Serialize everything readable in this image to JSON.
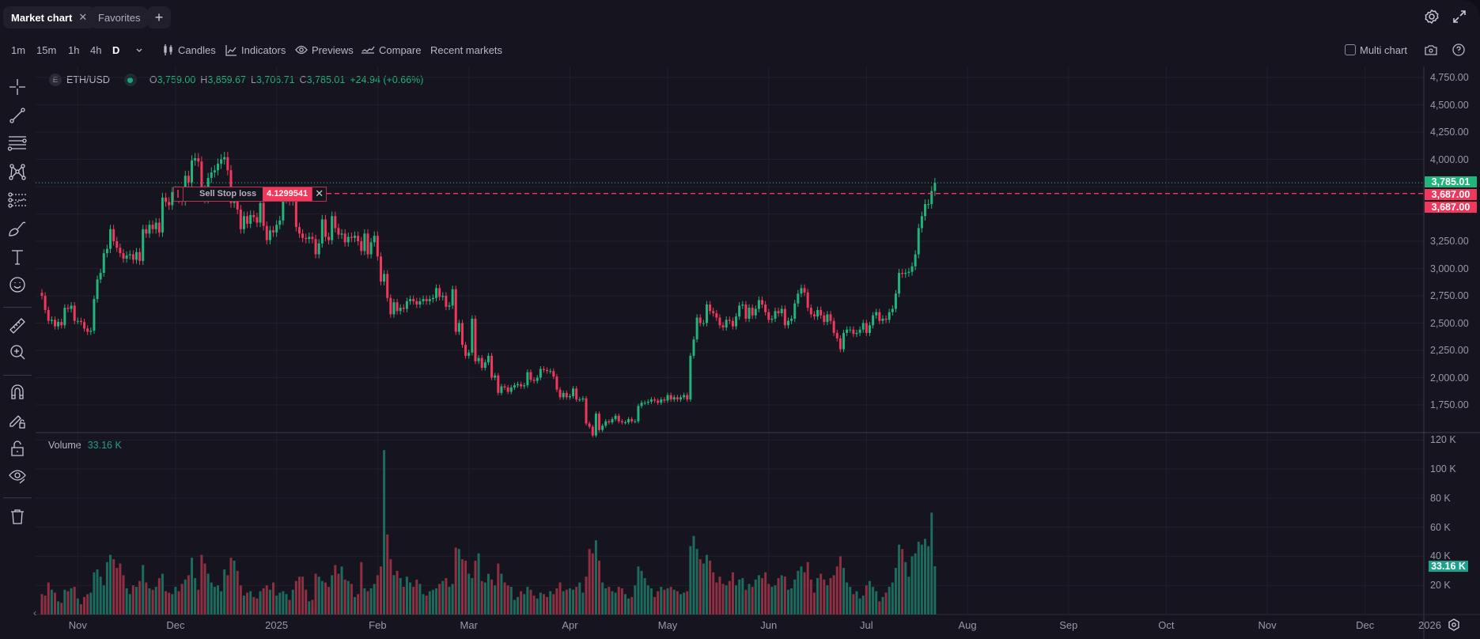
{
  "tabs": [
    {
      "label": "Market chart",
      "active": true
    },
    {
      "label": "Favorites",
      "active": false
    }
  ],
  "add_tab_label": "+",
  "timeframes": [
    "1m",
    "15m",
    "1h",
    "4h",
    "D"
  ],
  "active_timeframe": "D",
  "toolbar": {
    "candles": "Candles",
    "indicators": "Indicators",
    "previews": "Previews",
    "compare": "Compare",
    "recent": "Recent markets",
    "multi_chart": "Multi chart"
  },
  "legend": {
    "exchange_badge": "E",
    "symbol": "ETH/USD",
    "open_label": "O",
    "open": "3,759.00",
    "high_label": "H",
    "high": "3,859.67",
    "low_label": "L",
    "low": "3,706.71",
    "close_label": "C",
    "close": "3,785.01",
    "change": "+24.94 (+0.66%)"
  },
  "volume_legend": {
    "label": "Volume",
    "value": "33.16 K"
  },
  "order": {
    "label": "Sell Stop loss",
    "value": "4.1299541",
    "price": 3687
  },
  "price_labels": {
    "last": "3,785.01",
    "order1": "3,687.00",
    "order2": "3,687.00",
    "volume": "33.16 K"
  },
  "colors": {
    "up": "#22b47a",
    "down": "#f0385d",
    "vol_up": "#1d6b5c",
    "vol_down": "#8f2f42",
    "bg": "#16141f",
    "last_price": "#22b47a",
    "order": "#f0385d",
    "volume_badge": "#1ea08a"
  },
  "icons": {
    "left_toolbar": [
      "crosshair-icon",
      "trend-line-icon",
      "horizontal-lines-icon",
      "pattern-icon",
      "fib-icon",
      "brush-icon",
      "text-icon",
      "emoji-icon",
      "ruler-icon",
      "zoom-in-icon",
      "magnet-icon",
      "lock-drawings-icon",
      "lock-icon",
      "eye-icon",
      "trash-icon"
    ]
  },
  "chart_data": {
    "type": "candlestick",
    "symbol": "ETH/USD",
    "interval": "D",
    "start_date": "2024-10-21",
    "end_date": "2025-07-22",
    "price_axis": {
      "ticks": [
        "4,750.00",
        "4,500.00",
        "4,250.00",
        "4,000.00",
        "3,250.00",
        "3,000.00",
        "2,750.00",
        "2,500.00",
        "2,250.00",
        "2,000.00",
        "1,750.00"
      ],
      "ylim": [
        1500,
        4850
      ]
    },
    "volume_axis": {
      "ticks": [
        "120 K",
        "100 K",
        "80 K",
        "60 K",
        "40 K",
        "20 K"
      ],
      "ylim": [
        0,
        125
      ]
    },
    "time_axis": {
      "ticks": [
        {
          "label": "Nov",
          "date": "2024-11-01"
        },
        {
          "label": "Dec",
          "date": "2024-12-01"
        },
        {
          "label": "2025",
          "date": "2025-01-01"
        },
        {
          "label": "Feb",
          "date": "2025-02-01"
        },
        {
          "label": "Mar",
          "date": "2025-03-01"
        },
        {
          "label": "Apr",
          "date": "2025-04-01"
        },
        {
          "label": "May",
          "date": "2025-05-01"
        },
        {
          "label": "Jun",
          "date": "2025-06-01"
        },
        {
          "label": "Jul",
          "date": "2025-07-01"
        },
        {
          "label": "Aug",
          "date": "2025-08-01"
        },
        {
          "label": "Sep",
          "date": "2025-09-01"
        },
        {
          "label": "Oct",
          "date": "2025-10-01"
        },
        {
          "label": "Nov",
          "date": "2025-11-01"
        },
        {
          "label": "Dec",
          "date": "2025-12-01"
        },
        {
          "label": "2026",
          "date": "2026-01-01"
        }
      ]
    },
    "last_price": 3785.01,
    "close": [
      2750,
      2620,
      2520,
      2530,
      2470,
      2510,
      2480,
      2640,
      2630,
      2660,
      2520,
      2520,
      2510,
      2450,
      2420,
      2430,
      2720,
      2900,
      2960,
      3140,
      3180,
      3360,
      3250,
      3190,
      3140,
      3090,
      3120,
      3130,
      3080,
      3150,
      3070,
      3360,
      3320,
      3400,
      3360,
      3420,
      3330,
      3650,
      3610,
      3580,
      3700,
      3710,
      3640,
      3620,
      3850,
      3790,
      3990,
      4010,
      3980,
      3720,
      3640,
      3830,
      3880,
      3900,
      3960,
      4000,
      4020,
      3900,
      3600,
      3620,
      3540,
      3360,
      3480,
      3410,
      3490,
      3470,
      3420,
      3600,
      3390,
      3260,
      3350,
      3330,
      3400,
      3440,
      3640,
      3640,
      3620,
      3690,
      3380,
      3320,
      3280,
      3270,
      3290,
      3270,
      3130,
      3230,
      3450,
      3290,
      3260,
      3480,
      3370,
      3310,
      3320,
      3240,
      3290,
      3280,
      3300,
      3250,
      3160,
      3320,
      3130,
      3240,
      3300,
      3110,
      2880,
      2950,
      2730,
      2580,
      2690,
      2610,
      2640,
      2630,
      2700,
      2720,
      2700,
      2670,
      2700,
      2720,
      2700,
      2720,
      2730,
      2820,
      2740,
      2750,
      2650,
      2660,
      2810,
      2420,
      2500,
      2300,
      2200,
      2230,
      2540,
      2150,
      2180,
      2090,
      2140,
      2200,
      2000,
      2020,
      1860,
      1920,
      1910,
      1870,
      1910,
      1930,
      1940,
      1920,
      1930,
      2050,
      1980,
      1970,
      2000,
      2080,
      2070,
      2060,
      2060,
      2010,
      1890,
      1820,
      1860,
      1820,
      1830,
      1900,
      1800,
      1800,
      1810,
      1580,
      1550,
      1470,
      1670,
      1520,
      1560,
      1600,
      1590,
      1620,
      1650,
      1600,
      1590,
      1590,
      1620,
      1600,
      1600,
      1740,
      1770,
      1770,
      1780,
      1800,
      1790,
      1770,
      1800,
      1790,
      1840,
      1800,
      1820,
      1800,
      1820,
      1840,
      1800,
      2200,
      2350,
      2550,
      2500,
      2500,
      2670,
      2610,
      2590,
      2550,
      2480,
      2460,
      2530,
      2520,
      2470,
      2560,
      2660,
      2670,
      2540,
      2640,
      2570,
      2630,
      2710,
      2670,
      2600,
      2530,
      2540,
      2610,
      2590,
      2630,
      2480,
      2520,
      2540,
      2680,
      2770,
      2820,
      2780,
      2640,
      2580,
      2560,
      2620,
      2570,
      2510,
      2580,
      2520,
      2410,
      2360,
      2260,
      2410,
      2440,
      2440,
      2400,
      2410,
      2440,
      2500,
      2410,
      2480,
      2570,
      2600,
      2520,
      2540,
      2530,
      2600,
      2630,
      2770,
      2960,
      2950,
      2960,
      2970,
      3020,
      3130,
      3370,
      3480,
      3590,
      3590,
      3710,
      3785.01
    ],
    "volume_k": [
      14,
      13,
      22,
      17,
      15,
      9,
      8,
      17,
      16,
      18,
      19,
      11,
      7,
      12,
      14,
      15,
      29,
      31,
      26,
      20,
      36,
      41,
      38,
      32,
      35,
      27,
      18,
      14,
      20,
      19,
      23,
      34,
      22,
      18,
      17,
      19,
      25,
      28,
      16,
      15,
      14,
      19,
      16,
      21,
      24,
      27,
      39,
      25,
      17,
      41,
      35,
      28,
      22,
      19,
      20,
      16,
      31,
      27,
      39,
      37,
      30,
      20,
      13,
      15,
      16,
      12,
      11,
      16,
      18,
      20,
      17,
      22,
      13,
      15,
      16,
      14,
      10,
      17,
      23,
      26,
      26,
      17,
      9,
      10,
      28,
      26,
      23,
      22,
      19,
      27,
      34,
      28,
      33,
      24,
      23,
      21,
      12,
      14,
      36,
      18,
      16,
      18,
      21,
      27,
      33,
      113,
      55,
      38,
      27,
      30,
      25,
      19,
      26,
      22,
      19,
      24,
      21,
      14,
      13,
      16,
      17,
      18,
      21,
      23,
      25,
      19,
      21,
      46,
      45,
      38,
      37,
      28,
      25,
      37,
      42,
      23,
      22,
      28,
      24,
      20,
      35,
      28,
      22,
      20,
      19,
      10,
      12,
      16,
      14,
      19,
      17,
      13,
      11,
      15,
      14,
      12,
      16,
      14,
      18,
      22,
      16,
      17,
      18,
      17,
      19,
      22,
      15,
      26,
      45,
      42,
      51,
      37,
      22,
      18,
      19,
      16,
      15,
      19,
      18,
      14,
      11,
      12,
      20,
      33,
      30,
      25,
      20,
      18,
      12,
      16,
      19,
      17,
      18,
      19,
      17,
      16,
      14,
      15,
      16,
      47,
      54,
      45,
      38,
      35,
      41,
      37,
      29,
      22,
      26,
      21,
      20,
      23,
      29,
      20,
      24,
      25,
      17,
      21,
      19,
      24,
      27,
      25,
      29,
      21,
      19,
      20,
      25,
      27,
      26,
      17,
      18,
      24,
      30,
      33,
      29,
      36,
      24,
      15,
      25,
      28,
      24,
      20,
      25,
      27,
      33,
      40,
      32,
      22,
      19,
      14,
      16,
      11,
      13,
      20,
      23,
      19,
      16,
      9,
      12,
      15,
      19,
      22,
      32,
      48,
      45,
      36,
      26,
      40,
      42,
      50,
      48,
      52,
      47,
      70,
      33.16
    ]
  }
}
